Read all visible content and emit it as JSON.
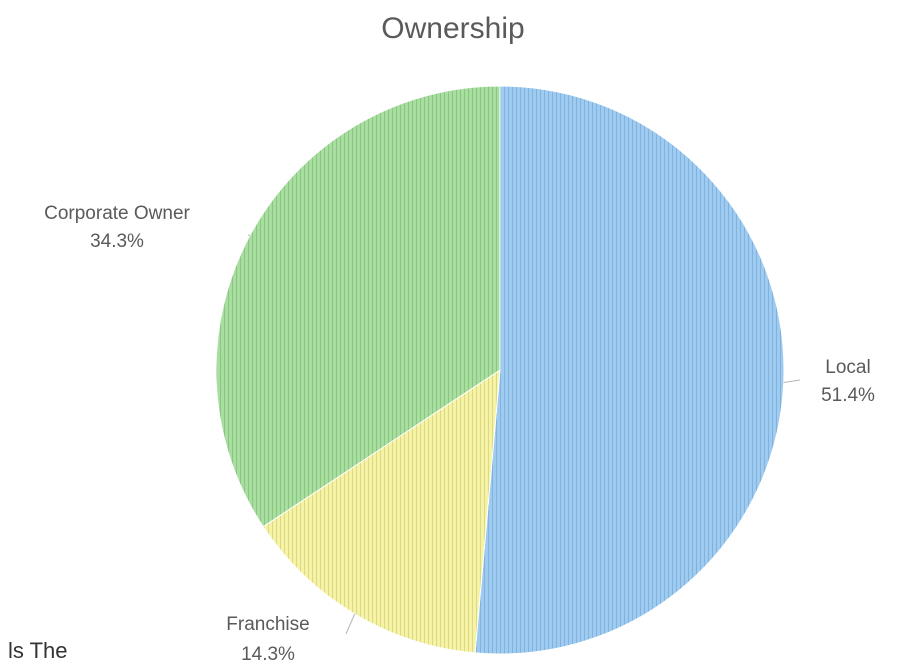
{
  "chart_data": {
    "type": "pie",
    "title": "Ownership",
    "slices": [
      {
        "label": "Local",
        "value": 51.4,
        "value_label": "51.4%",
        "color": "#9fcbee",
        "stripe": "#7fb2e2"
      },
      {
        "label": "Franchise",
        "value": 14.3,
        "value_label": "14.3%",
        "color": "#f6f3a6",
        "stripe": "#ddd886"
      },
      {
        "label": "Corporate Owner",
        "value": 34.3,
        "value_label": "34.3%",
        "color": "#a9dda1",
        "stripe": "#86c97c"
      }
    ],
    "start_angle_deg": 0,
    "direction": "clockwise",
    "legend": "none",
    "data_labels": "outside"
  },
  "page": {
    "bottom_fragment_text": "ls The"
  }
}
